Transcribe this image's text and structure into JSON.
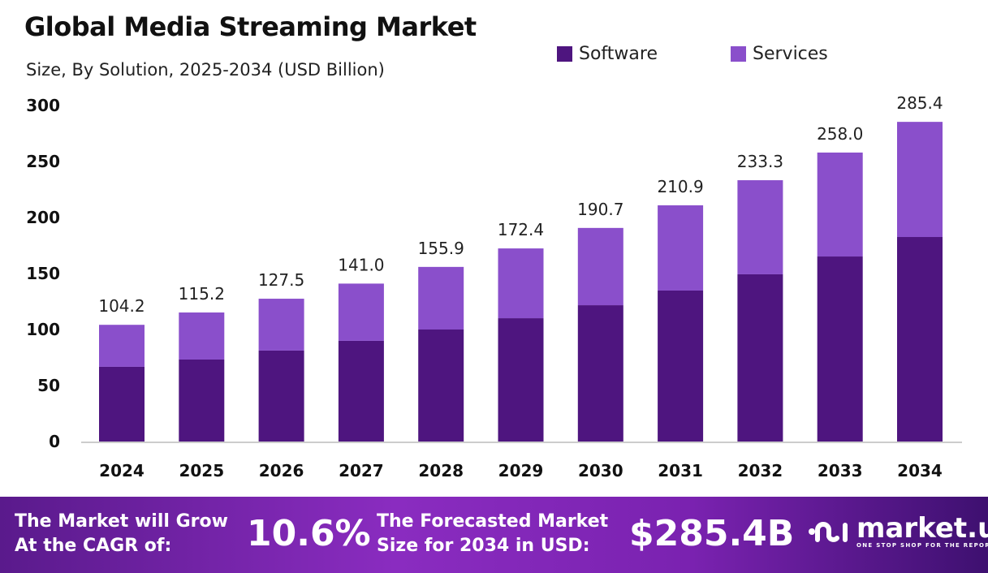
{
  "chart_data": {
    "type": "bar",
    "stacked": true,
    "title": "Global Media Streaming Market",
    "subtitle": "Size, By Solution, 2025-2034 (USD Billion)",
    "categories": [
      "2024",
      "2025",
      "2026",
      "2027",
      "2028",
      "2029",
      "2030",
      "2031",
      "2032",
      "2033",
      "2034"
    ],
    "series": [
      {
        "name": "Software",
        "color": "#4E157F",
        "values": [
          66.7,
          73.2,
          81.2,
          89.9,
          100.0,
          110.1,
          121.7,
          134.8,
          149.3,
          165.2,
          182.6
        ]
      },
      {
        "name": "Services",
        "color": "#8A4FCB",
        "values": [
          37.5,
          42.0,
          46.3,
          51.1,
          55.9,
          62.3,
          69.0,
          76.1,
          84.0,
          92.8,
          102.8
        ]
      }
    ],
    "totals": [
      "104.2",
      "115.2",
      "127.5",
      "141.0",
      "155.9",
      "172.4",
      "190.7",
      "210.9",
      "233.3",
      "258.0",
      "285.4"
    ],
    "ylim": [
      0,
      300
    ],
    "yticks": [
      "0",
      "50",
      "100",
      "150",
      "200",
      "250",
      "300"
    ],
    "grid": false,
    "legend_position": "top-right"
  },
  "footer": {
    "cagr_label_1": "The Market will Grow",
    "cagr_label_2": "At the CAGR of:",
    "cagr_value": "10.6%",
    "forecast_label_1": "The Forecasted Market",
    "forecast_label_2": "Size for 2034 in USD:",
    "forecast_value": "$285.4B",
    "logo_text": "market.us",
    "logo_tagline": "ONE STOP SHOP FOR THE REPORTS"
  }
}
